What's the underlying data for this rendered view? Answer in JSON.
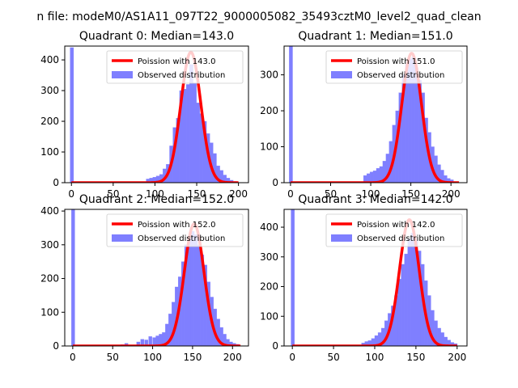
{
  "figure": {
    "suptitle": "n file: modeM0/AS1A11_097T22_9000005082_35493cztM0_level2_quad_clean",
    "colors": {
      "hist_fill": "#7f7fff",
      "hist_edge": "#8080ff",
      "poisson": "#ff0000",
      "axes": "#000000",
      "background": "#ffffff"
    }
  },
  "chart_data": [
    {
      "type": "bar",
      "title": "Quadrant 0: Median=143.0",
      "median": 143.0,
      "xlim": [
        -8,
        212
      ],
      "ylim": [
        0,
        445
      ],
      "xticks": [
        0,
        50,
        100,
        150,
        200
      ],
      "yticks": [
        0,
        100,
        200,
        300,
        400
      ],
      "bin_width": 4.2,
      "series": [
        {
          "name": "Observed distribution",
          "kind": "histogram",
          "bins": [
            [
              -1.6,
              440
            ],
            [
              89.5,
              12
            ],
            [
              93.5,
              15
            ],
            [
              97.5,
              18
            ],
            [
              101.5,
              22
            ],
            [
              105.5,
              27
            ],
            [
              109.5,
              45
            ],
            [
              113.5,
              60
            ],
            [
              117.5,
              120
            ],
            [
              121.5,
              180
            ],
            [
              125.5,
              210
            ],
            [
              129.5,
              300
            ],
            [
              133.5,
              305
            ],
            [
              137.5,
              320
            ],
            [
              141.5,
              385
            ],
            [
              145.5,
              325
            ],
            [
              149.5,
              260
            ],
            [
              153.5,
              225
            ],
            [
              157.5,
              200
            ],
            [
              161.5,
              160
            ],
            [
              165.5,
              130
            ],
            [
              169.5,
              95
            ],
            [
              173.5,
              55
            ],
            [
              177.5,
              40
            ],
            [
              181.5,
              25
            ],
            [
              185.5,
              15
            ],
            [
              189.5,
              8
            ],
            [
              193.5,
              4
            ]
          ]
        },
        {
          "name": "Poission with 143.0",
          "kind": "line",
          "from": 0,
          "to": 200,
          "peak": 425
        }
      ],
      "legend": [
        "Poission with 143.0",
        "Observed distribution"
      ]
    },
    {
      "type": "bar",
      "title": "Quadrant 1: Median=151.0",
      "median": 151.0,
      "xlim": [
        -8,
        220
      ],
      "ylim": [
        0,
        380
      ],
      "xticks": [
        0,
        50,
        100,
        150,
        200
      ],
      "yticks": [
        0,
        100,
        200,
        300
      ],
      "bin_width": 4.2,
      "series": [
        {
          "name": "Observed distribution",
          "kind": "histogram",
          "bins": [
            [
              -1.6,
              380
            ],
            [
              91,
              20
            ],
            [
              95,
              25
            ],
            [
              99,
              30
            ],
            [
              103,
              33
            ],
            [
              107,
              40
            ],
            [
              111,
              45
            ],
            [
              115,
              60
            ],
            [
              119,
              80
            ],
            [
              123,
              115
            ],
            [
              127,
              160
            ],
            [
              131,
              200
            ],
            [
              135,
              250
            ],
            [
              139,
              300
            ],
            [
              143,
              330
            ],
            [
              147,
              345
            ],
            [
              151,
              350
            ],
            [
              155,
              320
            ],
            [
              159,
              285
            ],
            [
              163,
              250
            ],
            [
              167,
              180
            ],
            [
              171,
              140
            ],
            [
              175,
              100
            ],
            [
              179,
              75
            ],
            [
              183,
              50
            ],
            [
              187,
              35
            ],
            [
              191,
              20
            ],
            [
              195,
              12
            ],
            [
              199,
              8
            ]
          ]
        },
        {
          "name": "Poission with 151.0",
          "kind": "line",
          "from": 0,
          "to": 210,
          "peak": 360
        }
      ],
      "legend": [
        "Poission with 151.0",
        "Observed distribution"
      ]
    },
    {
      "type": "bar",
      "title": "Quadrant 2: Median=152.0",
      "median": 152.0,
      "xlim": [
        -10,
        220
      ],
      "ylim": [
        0,
        405
      ],
      "xticks": [
        0,
        50,
        100,
        150,
        200
      ],
      "yticks": [
        0,
        100,
        200,
        300,
        400
      ],
      "bin_width": 4.2,
      "series": [
        {
          "name": "Observed distribution",
          "kind": "histogram",
          "bins": [
            [
              -1.6,
              405
            ],
            [
              60,
              4
            ],
            [
              65,
              8
            ],
            [
              80,
              12
            ],
            [
              85,
              20
            ],
            [
              90,
              18
            ],
            [
              95,
              28
            ],
            [
              100,
              25
            ],
            [
              104,
              30
            ],
            [
              108,
              35
            ],
            [
              112,
              40
            ],
            [
              116,
              65
            ],
            [
              120,
              95
            ],
            [
              124,
              130
            ],
            [
              128,
              175
            ],
            [
              132,
              205
            ],
            [
              136,
              250
            ],
            [
              140,
              300
            ],
            [
              144,
              320
            ],
            [
              148,
              340
            ],
            [
              152,
              330
            ],
            [
              156,
              300
            ],
            [
              160,
              270
            ],
            [
              164,
              240
            ],
            [
              168,
              190
            ],
            [
              172,
              145
            ],
            [
              176,
              110
            ],
            [
              180,
              80
            ],
            [
              184,
              55
            ],
            [
              188,
              35
            ],
            [
              192,
              20
            ],
            [
              196,
              12
            ],
            [
              200,
              8
            ],
            [
              204,
              5
            ]
          ]
        },
        {
          "name": "Poission with 152.0",
          "kind": "line",
          "from": 0,
          "to": 210,
          "peak": 362
        }
      ],
      "legend": [
        "Poission with 152.0",
        "Observed distribution"
      ]
    },
    {
      "type": "bar",
      "title": "Quadrant 3: Median=142.0",
      "median": 142.0,
      "xlim": [
        -10,
        212
      ],
      "ylim": [
        0,
        460
      ],
      "xticks": [
        0,
        50,
        100,
        150,
        200
      ],
      "yticks": [
        0,
        100,
        200,
        300,
        400
      ],
      "bin_width": 4.2,
      "series": [
        {
          "name": "Observed distribution",
          "kind": "histogram",
          "bins": [
            [
              -1.6,
              460
            ],
            [
              84,
              10
            ],
            [
              88,
              15
            ],
            [
              92,
              18
            ],
            [
              96,
              25
            ],
            [
              100,
              35
            ],
            [
              104,
              45
            ],
            [
              108,
              60
            ],
            [
              112,
              85
            ],
            [
              116,
              110
            ],
            [
              120,
              135
            ],
            [
              124,
              170
            ],
            [
              128,
              225
            ],
            [
              132,
              275
            ],
            [
              136,
              310
            ],
            [
              140,
              360
            ],
            [
              144,
              380
            ],
            [
              148,
              355
            ],
            [
              152,
              320
            ],
            [
              156,
              275
            ],
            [
              160,
              220
            ],
            [
              164,
              170
            ],
            [
              168,
              120
            ],
            [
              172,
              85
            ],
            [
              176,
              60
            ],
            [
              180,
              45
            ],
            [
              184,
              30
            ],
            [
              188,
              20
            ],
            [
              192,
              12
            ],
            [
              196,
              8
            ]
          ]
        },
        {
          "name": "Poission with 142.0",
          "kind": "line",
          "from": 0,
          "to": 200,
          "peak": 425
        }
      ],
      "legend": [
        "Poission with 142.0",
        "Observed distribution"
      ]
    }
  ]
}
